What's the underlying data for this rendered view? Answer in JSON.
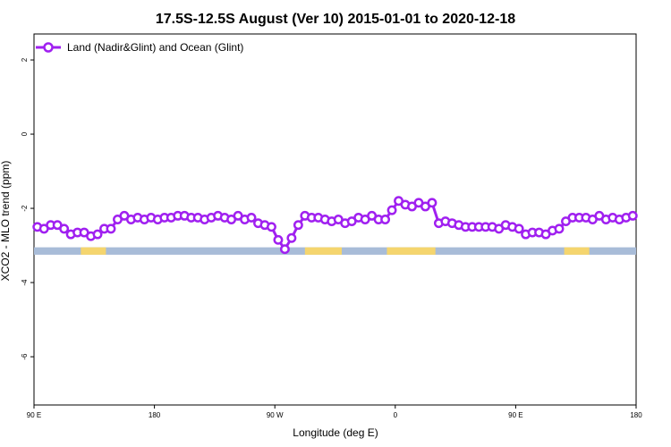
{
  "chart_data": {
    "type": "line",
    "title": "17.5S-12.5S August (Ver 10)   2015-01-01 to 2020-12-18",
    "xlabel": "Longitude (deg E)",
    "ylabel": "XCO2 - MLO trend (ppm)",
    "xlim": [
      90,
      450
    ],
    "ylim": [
      -7.3,
      2.7
    ],
    "x_ticks": [
      {
        "value": 90,
        "label": "90 E"
      },
      {
        "value": 162,
        "label": "180"
      },
      {
        "value": 234,
        "label": "90 W"
      },
      {
        "value": 306,
        "label": "0"
      },
      {
        "value": 378,
        "label": "90 E"
      },
      {
        "value": 450,
        "label": "180"
      }
    ],
    "y_ticks": [
      2,
      0,
      -2,
      -4,
      -6
    ],
    "grid": false,
    "legend": {
      "position": "top-left"
    },
    "colors": {
      "series": "#a020f0",
      "ocean": "#a8bcd8",
      "land": "#f5d56e"
    },
    "land_ocean_strip": {
      "y_range": [
        -3.25,
        -3.05
      ],
      "land_spans": [
        [
          118,
          133
        ],
        [
          252,
          274
        ],
        [
          301,
          330
        ],
        [
          407,
          422
        ]
      ]
    },
    "series": [
      {
        "name": "Land (Nadir&Glint) and Ocean (Glint)",
        "x": [
          92,
          96,
          100,
          104,
          108,
          112,
          116,
          120,
          124,
          128,
          132,
          136,
          140,
          144,
          148,
          152,
          156,
          160,
          164,
          168,
          172,
          176,
          180,
          184,
          188,
          192,
          196,
          200,
          204,
          208,
          212,
          216,
          220,
          224,
          228,
          232,
          236,
          240,
          244,
          248,
          252,
          256,
          260,
          264,
          268,
          272,
          276,
          280,
          284,
          288,
          292,
          296,
          300,
          304,
          308,
          312,
          316,
          320,
          324,
          328,
          332,
          336,
          340,
          344,
          348,
          352,
          356,
          360,
          364,
          368,
          372,
          376,
          380,
          384,
          388,
          392,
          396,
          400,
          404,
          408,
          412,
          416,
          420,
          424,
          428,
          432,
          436,
          440,
          444,
          448
        ],
        "values": [
          -2.5,
          -2.55,
          -2.45,
          -2.45,
          -2.55,
          -2.7,
          -2.65,
          -2.65,
          -2.75,
          -2.7,
          -2.55,
          -2.55,
          -2.3,
          -2.2,
          -2.3,
          -2.25,
          -2.3,
          -2.25,
          -2.3,
          -2.25,
          -2.25,
          -2.2,
          -2.2,
          -2.25,
          -2.25,
          -2.3,
          -2.25,
          -2.2,
          -2.25,
          -2.3,
          -2.2,
          -2.3,
          -2.25,
          -2.4,
          -2.45,
          -2.5,
          -2.85,
          -3.1,
          -2.8,
          -2.45,
          -2.2,
          -2.25,
          -2.25,
          -2.3,
          -2.35,
          -2.3,
          -2.4,
          -2.35,
          -2.25,
          -2.3,
          -2.2,
          -2.3,
          -2.3,
          -2.05,
          -1.8,
          -1.9,
          -1.95,
          -1.85,
          -1.95,
          -1.85,
          -2.4,
          -2.35,
          -2.4,
          -2.45,
          -2.5,
          -2.5,
          -2.5,
          -2.5,
          -2.5,
          -2.55,
          -2.45,
          -2.5,
          -2.55,
          -2.7,
          -2.65,
          -2.65,
          -2.7,
          -2.6,
          -2.55,
          -2.35,
          -2.25,
          -2.25,
          -2.25,
          -2.3,
          -2.2,
          -2.3,
          -2.25,
          -2.3,
          -2.25,
          -2.2
        ]
      }
    ]
  }
}
